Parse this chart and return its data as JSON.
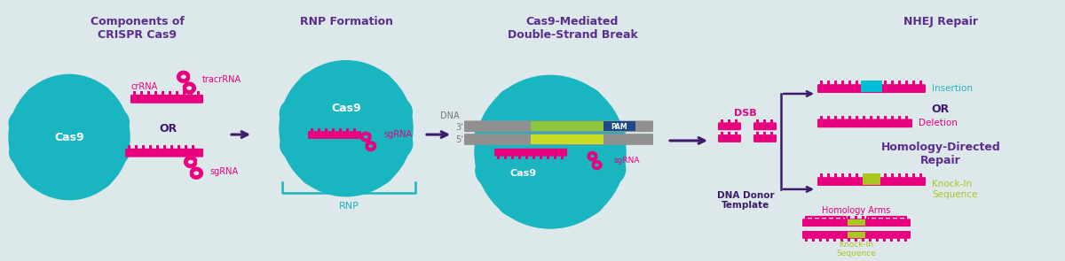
{
  "bg_color": "#dde8ea",
  "teal": "#19b5c0",
  "pink": "#e8007e",
  "purple": "#5b2d8e",
  "dark_purple": "#3d1a6b",
  "gray": "#888888",
  "green": "#a8c820",
  "blue_pam": "#1a4a8a",
  "title1": "Components of\nCRISPR Cas9",
  "title2": "RNP Formation",
  "title3": "Cas9-Mediated\nDouble-Strand Break",
  "title4_nhej": "NHEJ Repair",
  "title4_hdr": "Homology-Directed\nRepair"
}
